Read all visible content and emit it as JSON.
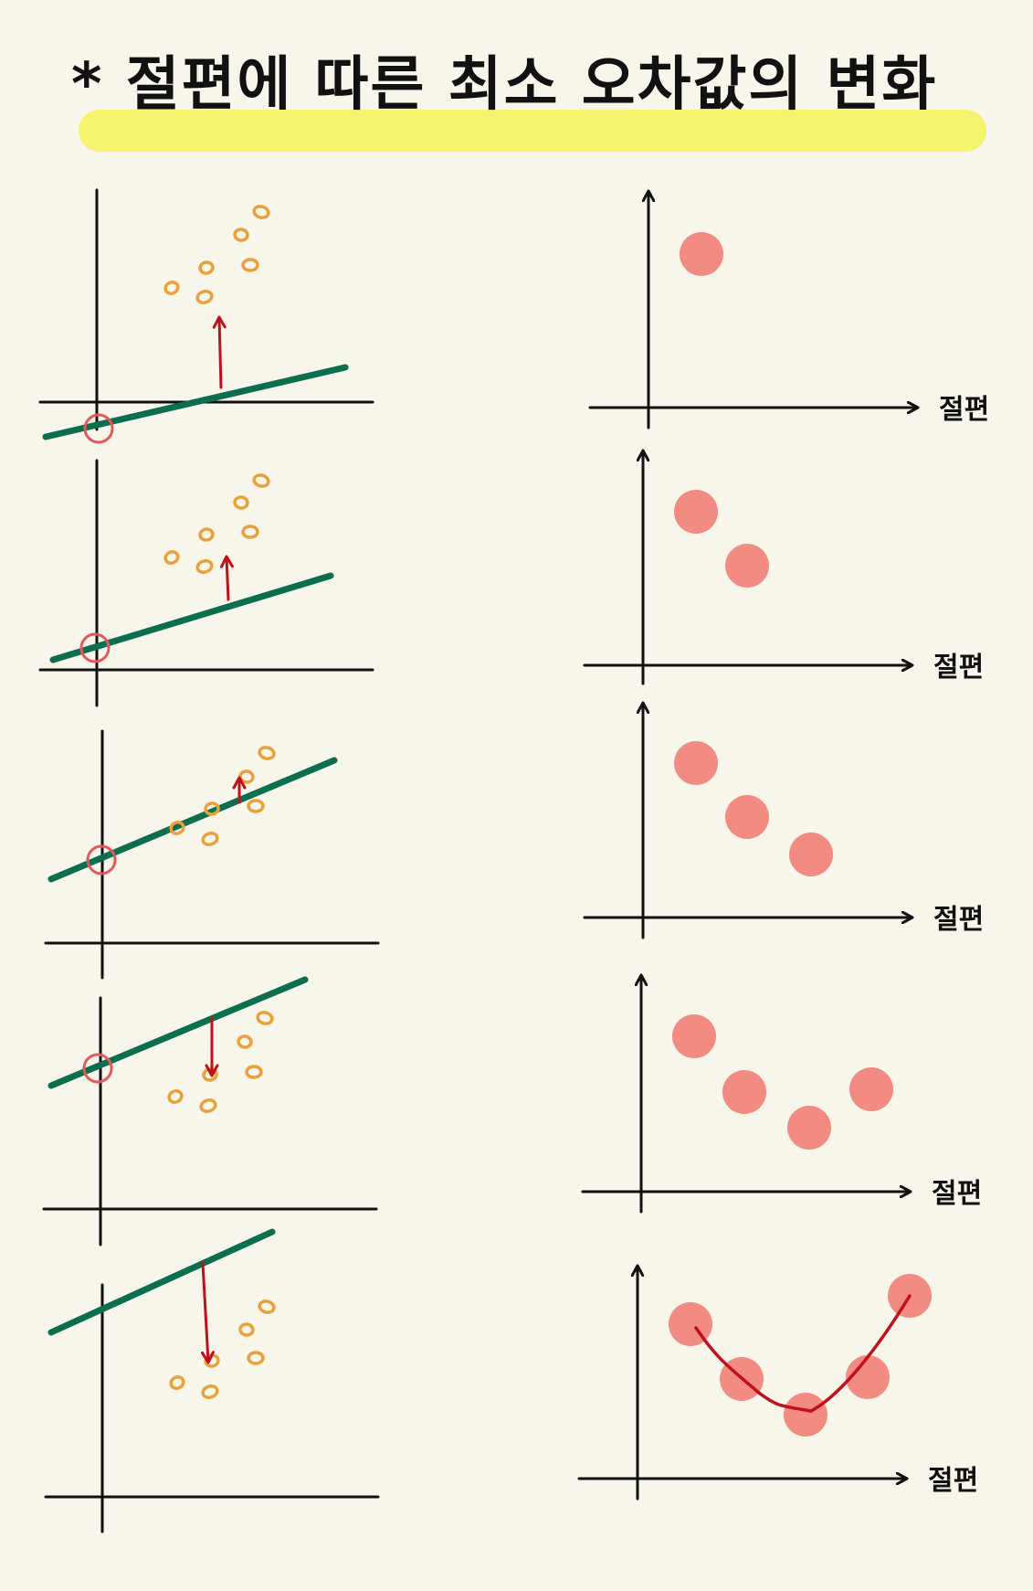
{
  "title": "* 절편에  따른  최소 오차값의  변화",
  "x_axis_label": "절편",
  "colors": {
    "background": "#f8f5ea",
    "highlight": "#f5f46e",
    "regression_line": "#0b6e4f",
    "data_points": "#e9a23b",
    "error_arrow": "#c0101a",
    "intercept_marker": "#e05a5a",
    "error_dots": "#f28b82",
    "error_curve": "#c0101a",
    "axes": "#111111"
  },
  "panels": [
    {
      "intercept_step": 1,
      "error_direction": "up"
    },
    {
      "intercept_step": 2,
      "error_direction": "up"
    },
    {
      "intercept_step": 3,
      "error_direction": "up"
    },
    {
      "intercept_step": 4,
      "error_direction": "down"
    },
    {
      "intercept_step": 5,
      "error_direction": "down"
    }
  ],
  "chart_data": {
    "type": "scatter",
    "xlabel": "절편",
    "ylabel": "",
    "series": [
      {
        "values": [
          [
            1,
            4
          ]
        ]
      },
      {
        "values": [
          [
            1,
            4
          ],
          [
            2,
            3
          ]
        ]
      },
      {
        "values": [
          [
            1,
            4
          ],
          [
            2,
            3
          ],
          [
            3,
            2.3
          ]
        ]
      },
      {
        "values": [
          [
            1,
            4
          ],
          [
            2,
            3
          ],
          [
            3,
            2.3
          ],
          [
            4,
            3
          ]
        ]
      },
      {
        "values": [
          [
            1,
            4
          ],
          [
            2,
            3
          ],
          [
            3,
            2.3
          ],
          [
            4,
            3
          ],
          [
            5,
            4
          ]
        ],
        "curve": true
      }
    ]
  }
}
